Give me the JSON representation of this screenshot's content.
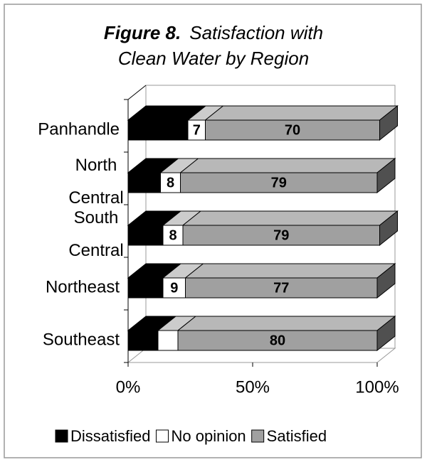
{
  "chart_data": {
    "type": "stacked-bar-3d",
    "title_label": "Figure 8.",
    "title_lines": [
      "Satisfaction with",
      "Clean Water by Region"
    ],
    "categories": [
      "Panhandle",
      "North Central",
      "South Central",
      "Northeast",
      "Southeast"
    ],
    "series": [
      {
        "name": "Dissatisfied",
        "color": "#000000",
        "values": [
          24,
          13,
          14,
          14,
          12
        ]
      },
      {
        "name": "No opinion",
        "color": "#ffffff",
        "values": [
          7,
          8,
          8,
          9,
          8
        ],
        "value_labels": [
          "7",
          "8",
          "8",
          "9",
          null
        ]
      },
      {
        "name": "Satisfied",
        "color": "#a0a0a0",
        "values": [
          70,
          79,
          79,
          77,
          80
        ]
      }
    ],
    "xlim": [
      0,
      100
    ],
    "xticks": [
      {
        "value": 0,
        "label": "0%"
      },
      {
        "value": 50,
        "label": "50%"
      },
      {
        "value": 100,
        "label": "100%"
      }
    ],
    "legend": "bottom"
  }
}
